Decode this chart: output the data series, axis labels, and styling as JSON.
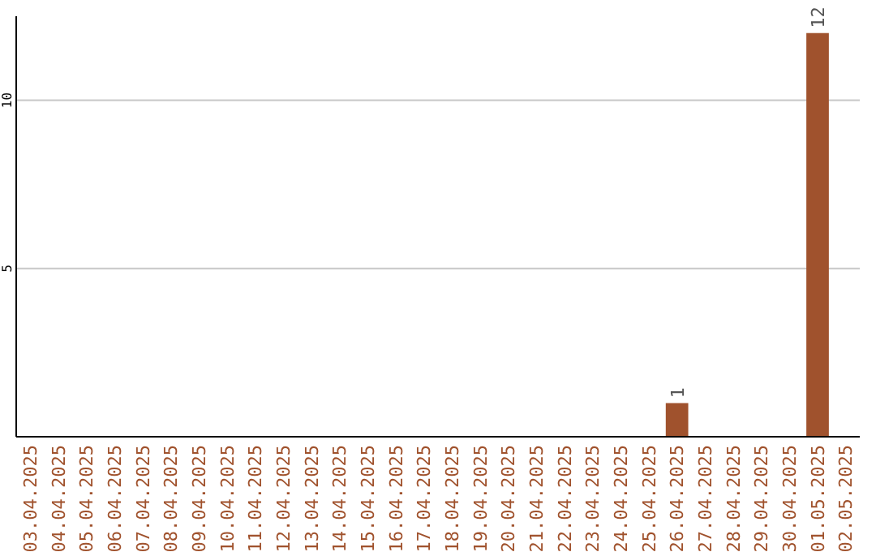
{
  "chart_data": {
    "type": "bar",
    "categories": [
      "03.04.2025",
      "04.04.2025",
      "05.04.2025",
      "06.04.2025",
      "07.04.2025",
      "08.04.2025",
      "09.04.2025",
      "10.04.2025",
      "11.04.2025",
      "12.04.2025",
      "13.04.2025",
      "14.04.2025",
      "15.04.2025",
      "16.04.2025",
      "17.04.2025",
      "18.04.2025",
      "19.04.2025",
      "20.04.2025",
      "21.04.2025",
      "22.04.2025",
      "23.04.2025",
      "24.04.2025",
      "25.04.2025",
      "26.04.2025",
      "27.04.2025",
      "28.04.2025",
      "29.04.2025",
      "30.04.2025",
      "01.05.2025",
      "02.05.2025"
    ],
    "values": [
      0,
      0,
      0,
      0,
      0,
      0,
      0,
      0,
      0,
      0,
      0,
      0,
      0,
      0,
      0,
      0,
      0,
      0,
      0,
      0,
      0,
      0,
      0,
      1,
      0,
      0,
      0,
      0,
      12,
      0
    ],
    "value_labels": [
      null,
      null,
      null,
      null,
      null,
      null,
      null,
      null,
      null,
      null,
      null,
      null,
      null,
      null,
      null,
      null,
      null,
      null,
      null,
      null,
      null,
      null,
      null,
      "1",
      null,
      null,
      null,
      null,
      "12",
      null
    ],
    "color": "#a0522d",
    "ylim": [
      0,
      12.5
    ],
    "yticks": [
      5,
      10
    ],
    "grid": "y"
  }
}
